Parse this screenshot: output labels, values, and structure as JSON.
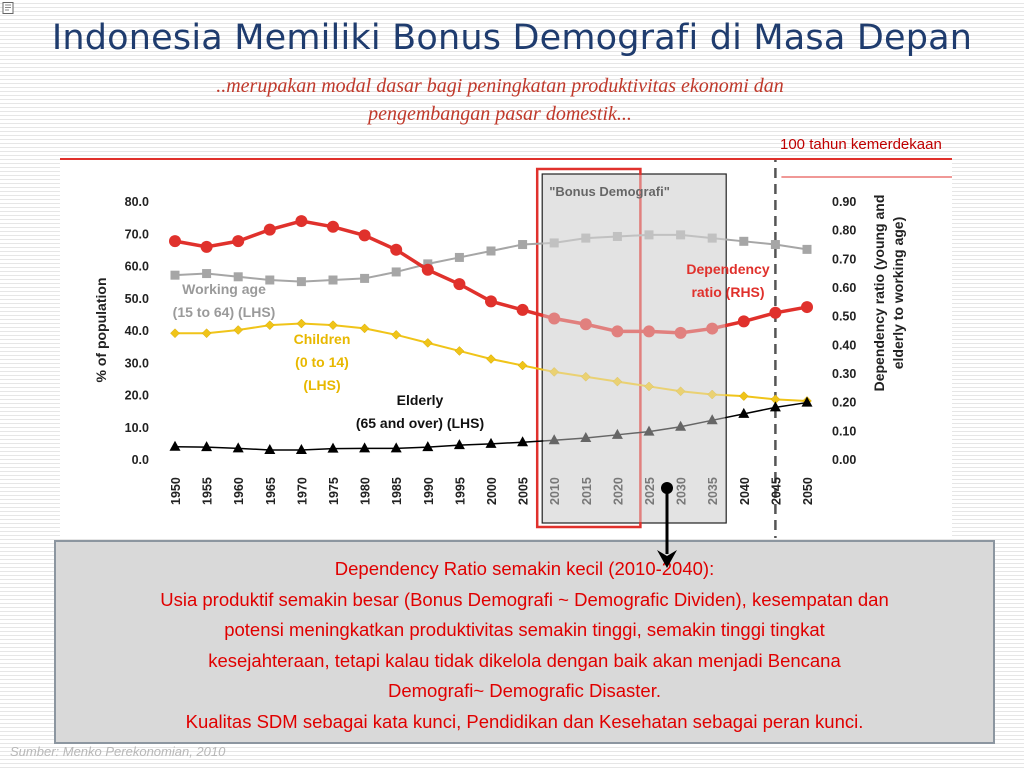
{
  "slide": {
    "title": "Indonesia Memiliki Bonus Demografi di Masa Depan",
    "subtitle_line1": "..merupakan modal dasar bagi peningkatan produktivitas ekonomi dan",
    "subtitle_line2": "pengembangan pasar domestik...",
    "marker_label": "100  tahun kemerdekaan",
    "source": "Sumber: Menko Perekonomian, 2010"
  },
  "description": {
    "line1": "Dependency Ratio semakin kecil (2010-2040):",
    "line2": "Usia produktif semakin besar (Bonus Demografi ~ Demografic Dividen), kesempatan dan",
    "line3": "potensi meningkatkan produktivitas semakin tinggi, semakin tinggi tingkat",
    "line4": "kesejahteraan, tetapi kalau tidak dikelola dengan baik akan menjadi Bencana",
    "line5": "Demografi~ Demografic Disaster.",
    "line6": "Kualitas SDM sebagai kata kunci, Pendidikan dan Kesehatan sebagai peran kunci."
  },
  "colors": {
    "title": "#1f3c6e",
    "accent_red": "#e0312c",
    "working_age": "#a6a6a6",
    "children": "#f0c419",
    "elderly": "#000000",
    "dependency": "#e0312c"
  },
  "chart_data": {
    "type": "line",
    "x": [
      "1950",
      "1955",
      "1960",
      "1965",
      "1970",
      "1975",
      "1980",
      "1985",
      "1990",
      "1995",
      "2000",
      "2005",
      "2010",
      "2015",
      "2020",
      "2025",
      "2030",
      "2035",
      "2040",
      "2045",
      "2050"
    ],
    "ylabel": "% of population",
    "y2label_line1": "Dependency ratio (young and",
    "y2label_line2": "elderly to working age)",
    "ylim": [
      0,
      80
    ],
    "y_ticks": [
      "0.0",
      "10.0",
      "20.0",
      "30.0",
      "40.0",
      "50.0",
      "60.0",
      "70.0",
      "80.0"
    ],
    "y2lim": [
      0,
      0.9
    ],
    "y2_ticks": [
      "0.00",
      "0.10",
      "0.20",
      "0.30",
      "0.40",
      "0.50",
      "0.60",
      "0.70",
      "0.80",
      "0.90"
    ],
    "highlight_label": "\"Bonus Demografi\"",
    "highlight_range": [
      "2010",
      "2035"
    ],
    "marker_year": "2045",
    "series": [
      {
        "key": "working",
        "axis": "left",
        "marker": "square",
        "color": "#a6a6a6",
        "label_lines": [
          "Working age",
          "(15 to 64) (LHS)"
        ],
        "values": [
          57.0,
          57.5,
          56.5,
          55.5,
          55.0,
          55.5,
          56.0,
          58.0,
          60.5,
          62.5,
          64.5,
          66.5,
          67.0,
          68.5,
          69.0,
          69.5,
          69.5,
          68.5,
          67.5,
          66.5,
          65.0
        ]
      },
      {
        "key": "children",
        "axis": "left",
        "marker": "diamond",
        "color": "#f0c419",
        "label_lines": [
          "Children",
          "(0 to 14)",
          "(LHS)"
        ],
        "values": [
          39.0,
          39.0,
          40.0,
          41.5,
          42.0,
          41.5,
          40.5,
          38.5,
          36.0,
          33.5,
          31.0,
          29.0,
          27.0,
          25.5,
          24.0,
          22.5,
          21.0,
          20.0,
          19.5,
          18.5,
          18.0
        ]
      },
      {
        "key": "elderly",
        "axis": "left",
        "marker": "triangle",
        "color": "#000000",
        "label_lines": [
          "Elderly",
          "(65 and over) (LHS)"
        ],
        "values": [
          3.8,
          3.7,
          3.3,
          2.8,
          2.8,
          3.2,
          3.3,
          3.3,
          3.7,
          4.3,
          4.7,
          5.2,
          5.8,
          6.5,
          7.5,
          8.5,
          10.0,
          12.0,
          14.0,
          16.0,
          17.5
        ]
      },
      {
        "key": "dependency",
        "axis": "right",
        "marker": "circle",
        "color": "#e0312c",
        "label_lines": [
          "Dependency",
          "ratio (RHS)"
        ],
        "values": [
          0.76,
          0.74,
          0.76,
          0.8,
          0.83,
          0.81,
          0.78,
          0.73,
          0.66,
          0.61,
          0.55,
          0.52,
          0.49,
          0.47,
          0.445,
          0.445,
          0.44,
          0.455,
          0.48,
          0.51,
          0.53
        ]
      }
    ]
  }
}
